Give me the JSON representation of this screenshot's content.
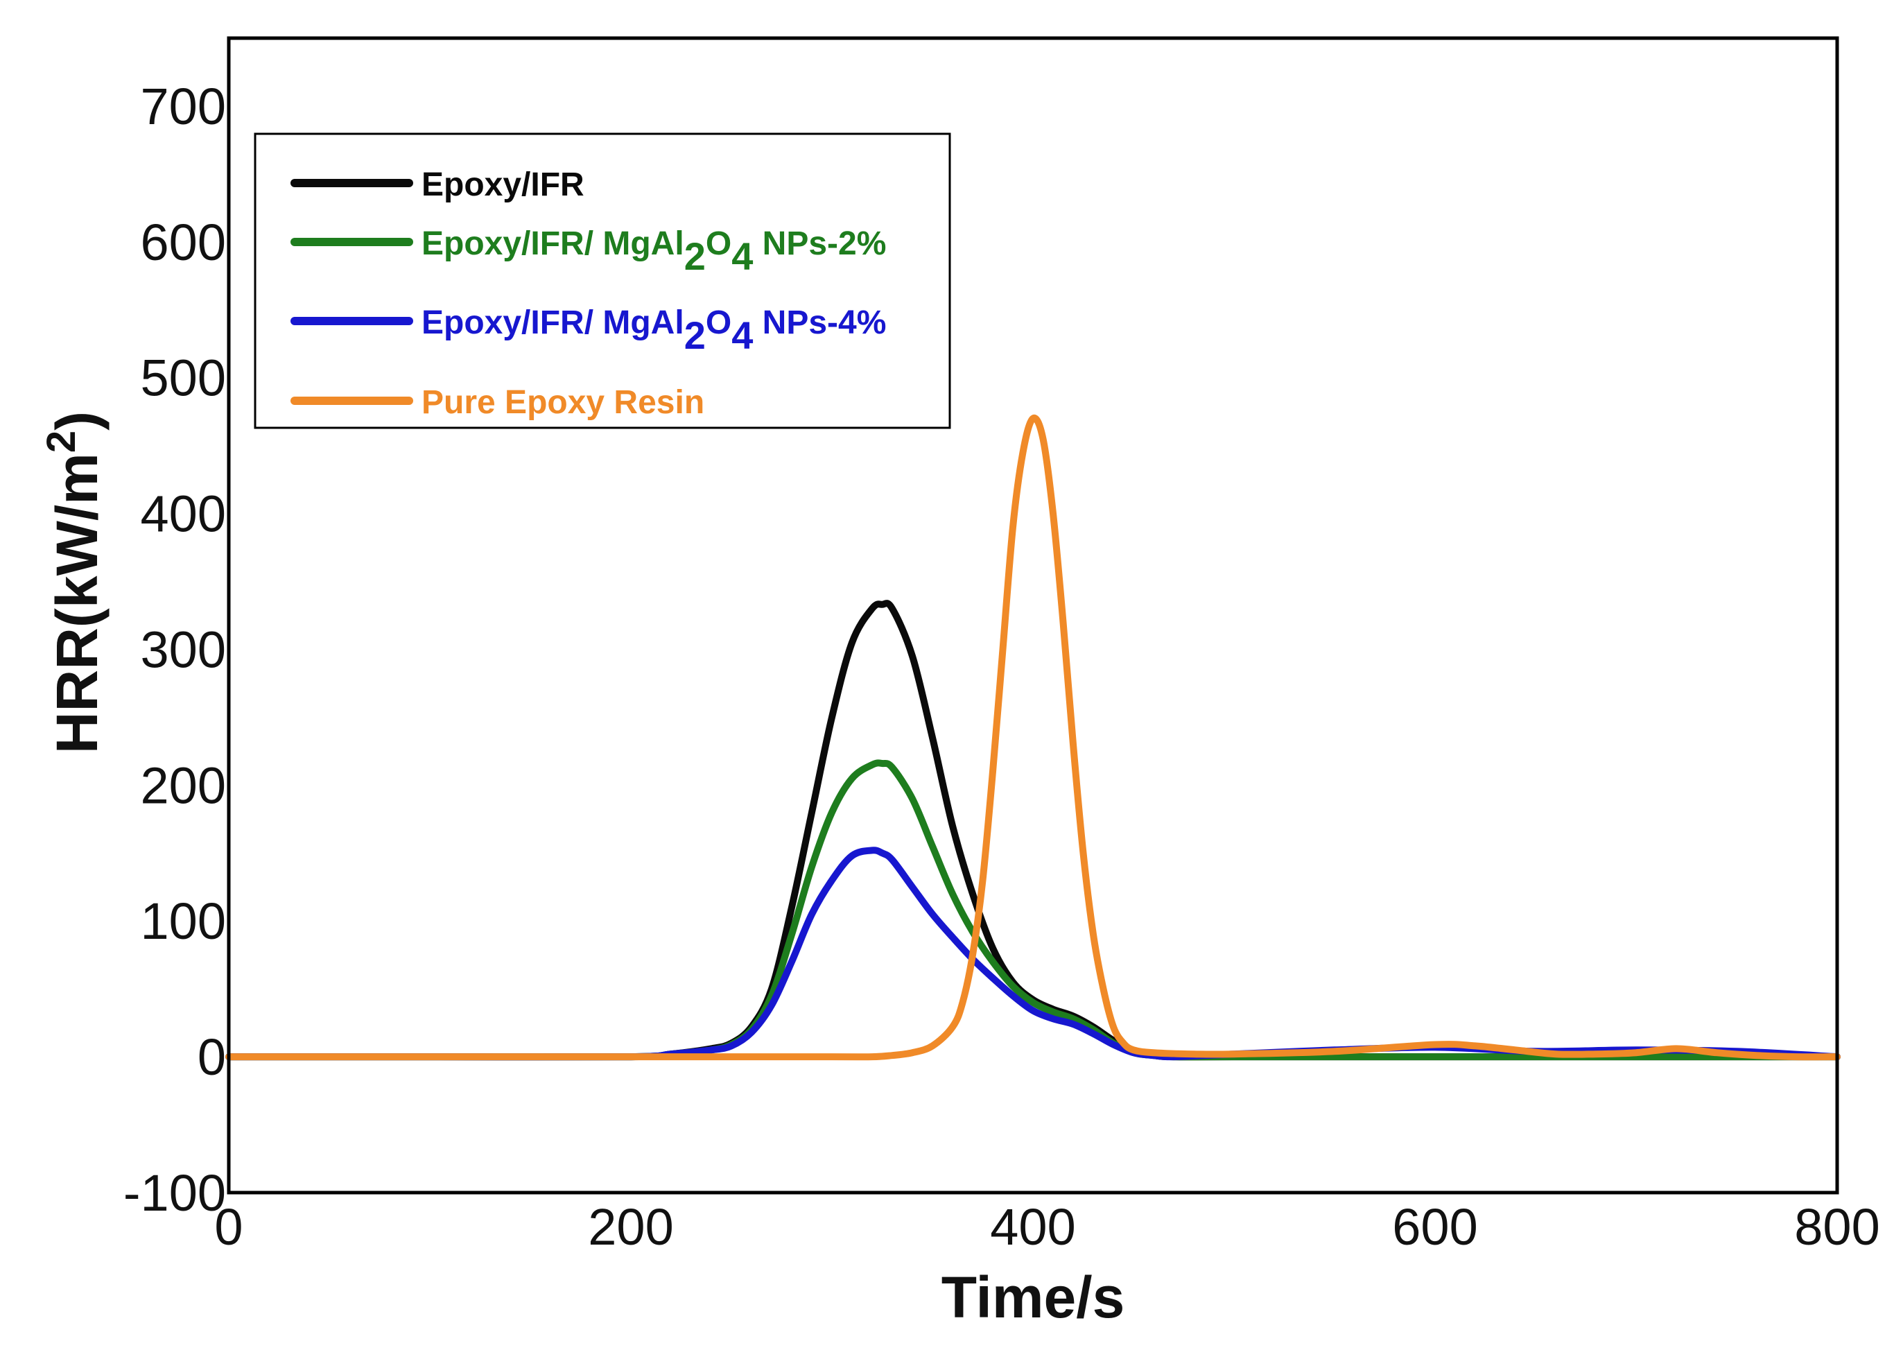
{
  "chart_data": {
    "type": "line",
    "title": "",
    "xlabel": "Time/s",
    "ylabel": {
      "main": "HRR(kW/m",
      "superscript": "2",
      "close": ")"
    },
    "xlim": [
      0,
      800
    ],
    "ylim": [
      -100,
      750
    ],
    "xticks": [
      0,
      200,
      400,
      600,
      800
    ],
    "yticks": [
      -100,
      0,
      100,
      200,
      300,
      400,
      500,
      600,
      700
    ],
    "grid": false,
    "legend_position": "top-left",
    "series": [
      {
        "name": "Epoxy/IFR",
        "legend": {
          "main": "Epoxy/IFR",
          "sub1": "",
          "mid": "",
          "sub2": "",
          "tail": ""
        },
        "color": "#0a0a0a",
        "x": [
          0,
          100,
          200,
          220,
          240,
          250,
          260,
          270,
          280,
          290,
          300,
          310,
          320,
          325,
          330,
          340,
          350,
          360,
          370,
          380,
          390,
          400,
          410,
          420,
          430,
          440,
          450,
          460,
          470,
          500,
          600,
          700,
          800
        ],
        "y": [
          0,
          0,
          0,
          2,
          6,
          10,
          22,
          50,
          110,
          180,
          250,
          305,
          330,
          333,
          330,
          295,
          235,
          170,
          120,
          80,
          55,
          42,
          35,
          30,
          22,
          12,
          4,
          1,
          0,
          0,
          0,
          0,
          0
        ]
      },
      {
        "name": "Epoxy/IFR/ MgAl2O4 NPs-2%",
        "legend": {
          "main": "Epoxy/IFR/ MgAl",
          "sub1": "2",
          "mid": "O",
          "sub2": "4",
          "tail": " NPs-2%"
        },
        "color": "#1e7d1e",
        "x": [
          0,
          100,
          200,
          220,
          240,
          250,
          260,
          270,
          280,
          290,
          300,
          310,
          320,
          325,
          330,
          340,
          350,
          360,
          370,
          380,
          390,
          400,
          410,
          420,
          430,
          440,
          450,
          460,
          470,
          500,
          600,
          700,
          800
        ],
        "y": [
          0,
          0,
          0,
          2,
          5,
          9,
          20,
          45,
          90,
          140,
          180,
          205,
          215,
          216,
          213,
          190,
          155,
          120,
          92,
          70,
          52,
          40,
          33,
          28,
          20,
          10,
          3,
          1,
          0,
          0,
          0,
          0,
          0
        ]
      },
      {
        "name": "Epoxy/IFR/ MgAl2O4 NPs-4%",
        "legend": {
          "main": "Epoxy/IFR/ MgAl",
          "sub1": "2",
          "mid": "O",
          "sub2": "4",
          "tail": " NPs-4%"
        },
        "color": "#1717cf",
        "x": [
          0,
          100,
          200,
          220,
          240,
          250,
          260,
          270,
          280,
          290,
          300,
          310,
          320,
          325,
          330,
          340,
          350,
          360,
          370,
          380,
          390,
          400,
          410,
          420,
          430,
          440,
          450,
          460,
          470,
          500,
          550,
          600,
          650,
          700,
          750,
          800
        ],
        "y": [
          0,
          0,
          0,
          2,
          5,
          8,
          18,
          38,
          70,
          105,
          130,
          148,
          152,
          150,
          145,
          125,
          105,
          88,
          72,
          58,
          45,
          34,
          28,
          24,
          17,
          9,
          3,
          1,
          0,
          2,
          5,
          7,
          4,
          5,
          4,
          0
        ]
      },
      {
        "name": "Pure Epoxy Resin",
        "legend": {
          "main": "Pure Epoxy Resin",
          "sub1": "",
          "mid": "",
          "sub2": "",
          "tail": ""
        },
        "color": "#f08a28",
        "x": [
          0,
          100,
          200,
          300,
          320,
          330,
          340,
          350,
          360,
          365,
          370,
          375,
          380,
          385,
          390,
          395,
          400,
          405,
          410,
          415,
          420,
          425,
          430,
          435,
          440,
          445,
          450,
          460,
          480,
          500,
          550,
          600,
          620,
          640,
          660,
          680,
          700,
          720,
          740,
          760,
          780,
          800
        ],
        "y": [
          0,
          0,
          0,
          0,
          0,
          1,
          3,
          8,
          22,
          40,
          75,
          130,
          210,
          300,
          390,
          445,
          470,
          455,
          400,
          320,
          230,
          150,
          90,
          50,
          22,
          10,
          5,
          3,
          2,
          2,
          4,
          9,
          8,
          5,
          2,
          2,
          3,
          6,
          3,
          1,
          0,
          0
        ]
      }
    ]
  }
}
